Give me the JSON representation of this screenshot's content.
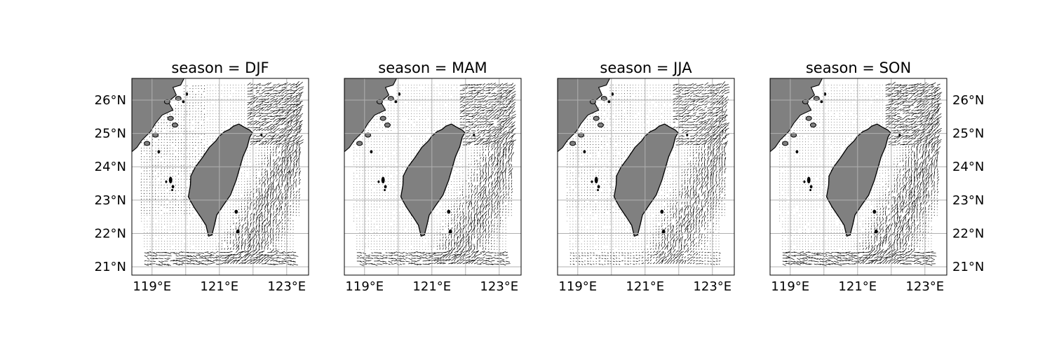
{
  "figure": {
    "type": "map-panels",
    "colors": {
      "land": "#808080",
      "coastline": "#000000",
      "gridline": "#b0b0b0",
      "vector": "#000000",
      "frame": "#000000",
      "background": "#ffffff"
    },
    "grid": true,
    "extent": {
      "lon": [
        118.4,
        123.65
      ],
      "lat": [
        20.75,
        26.65
      ]
    },
    "lon_ticks": [
      {
        "value": 119,
        "label": "119°E"
      },
      {
        "value": 121,
        "label": "121°E"
      },
      {
        "value": 123,
        "label": "123°E"
      }
    ],
    "lat_ticks": [
      {
        "value": 21,
        "label": "21°N"
      },
      {
        "value": 22,
        "label": "22°N"
      },
      {
        "value": 23,
        "label": "23°N"
      },
      {
        "value": 24,
        "label": "24°N"
      },
      {
        "value": 25,
        "label": "25°N"
      },
      {
        "value": 26,
        "label": "26°N"
      }
    ],
    "panels": [
      {
        "title": "season = DJF",
        "season": "DJF",
        "lat_labels_side": "left"
      },
      {
        "title": "season = MAM",
        "season": "MAM",
        "lat_labels_side": "none"
      },
      {
        "title": "season = JJA",
        "season": "JJA",
        "lat_labels_side": "none"
      },
      {
        "title": "season = SON",
        "season": "SON",
        "lat_labels_side": "right"
      }
    ],
    "layers": [
      "land",
      "coastline",
      "quiver",
      "gridlines"
    ]
  }
}
